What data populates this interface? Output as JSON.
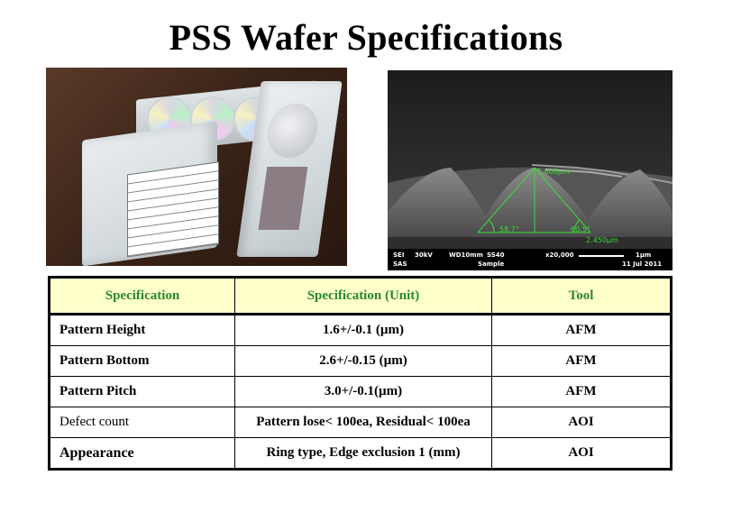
{
  "title": "PSS Wafer Specifications",
  "sem": {
    "footer": {
      "sei": "SEI",
      "kv": "30kV",
      "wd": "WD10mm",
      "ss": "SS40",
      "mag": "x20,000",
      "scale": "1µm",
      "sas": "SAS",
      "sample": "Sample",
      "date": "11 Jul 2011"
    },
    "measurements": {
      "height": "1.600µm",
      "angle_left": "58.7°",
      "angle_right": "60.5°",
      "width": "2.450µm"
    }
  },
  "table": {
    "headers": [
      "Specification",
      "Specification (Unit)",
      "Tool"
    ],
    "rows": [
      {
        "name": "Pattern Height",
        "value": "1.6+/-0.1 (µm)",
        "tool": "AFM"
      },
      {
        "name": "Pattern Bottom",
        "value": "2.6+/-0.15 (µm)",
        "tool": "AFM"
      },
      {
        "name": "Pattern Pitch",
        "value": "3.0+/-0.1(µm)",
        "tool": "AFM"
      },
      {
        "name": "Defect count",
        "value": "Pattern lose< 100ea, Residual< 100ea",
        "tool": "AOI"
      },
      {
        "name": "Appearance",
        "value": "Ring type, Edge exclusion 1 (mm)",
        "tool": "AOI"
      }
    ]
  },
  "colors": {
    "header_bg": "#ffffcc",
    "header_text": "#2b8a2b",
    "sem_measure": "#3bdc3b"
  }
}
